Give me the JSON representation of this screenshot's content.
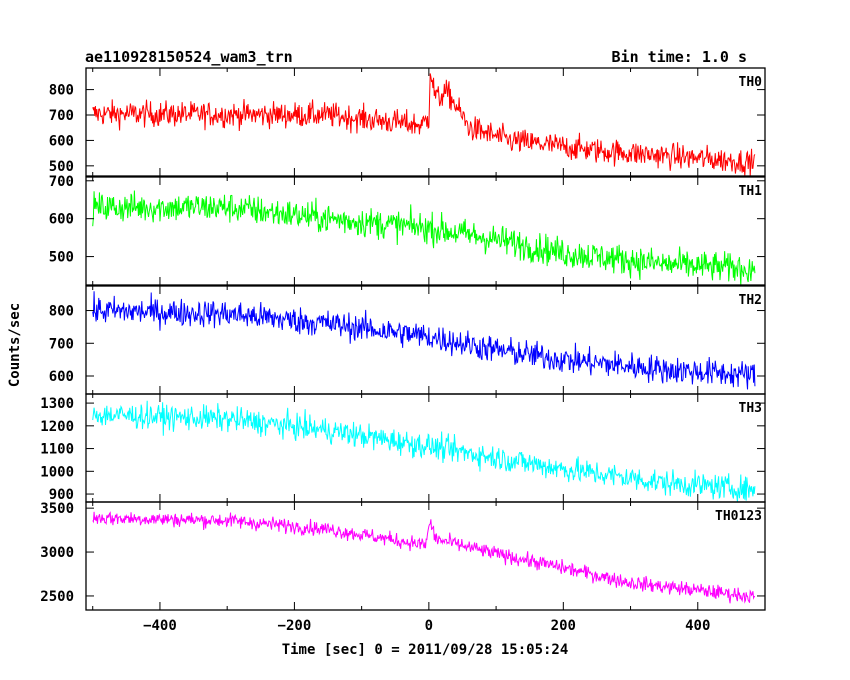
{
  "header": {
    "left": "ae110928150524_wam3_trn",
    "right": "Bin time: 1.0 s"
  },
  "chart_data": {
    "type": "line",
    "x_label": "Time [sec] 0 = 2011/09/28 15:05:24",
    "y_label": "Counts/sec",
    "x_range": [
      -510,
      500
    ],
    "x_ticks": [
      -400,
      -200,
      0,
      200,
      400
    ],
    "grid": false,
    "legend": "none",
    "panels": [
      {
        "label": "TH0",
        "color": "#ff0000",
        "y_range": [
          460,
          885
        ],
        "y_ticks": [
          500,
          600,
          700,
          800
        ],
        "trend": [
          [
            -500,
            705
          ],
          [
            -150,
            700
          ],
          [
            -10,
            660
          ],
          [
            0,
            690
          ],
          [
            2,
            885
          ],
          [
            8,
            790
          ],
          [
            15,
            760
          ],
          [
            22,
            790
          ],
          [
            30,
            780
          ],
          [
            60,
            650
          ],
          [
            120,
            600
          ],
          [
            250,
            560
          ],
          [
            500,
            510
          ]
        ],
        "noise": 45
      },
      {
        "label": "TH1",
        "color": "#00ff00",
        "y_range": [
          425,
          710
        ],
        "y_ticks": [
          500,
          600,
          700
        ],
        "trend": [
          [
            -500,
            630
          ],
          [
            -300,
            630
          ],
          [
            -150,
            600
          ],
          [
            0,
            575
          ],
          [
            100,
            545
          ],
          [
            200,
            510
          ],
          [
            350,
            480
          ],
          [
            500,
            465
          ]
        ],
        "noise": 36
      },
      {
        "label": "TH2",
        "color": "#0000ff",
        "y_range": [
          545,
          875
        ],
        "y_ticks": [
          600,
          700,
          800
        ],
        "trend": [
          [
            -500,
            800
          ],
          [
            -300,
            790
          ],
          [
            -150,
            760
          ],
          [
            0,
            720
          ],
          [
            100,
            680
          ],
          [
            200,
            650
          ],
          [
            350,
            620
          ],
          [
            500,
            600
          ]
        ],
        "noise": 38
      },
      {
        "label": "TH3",
        "color": "#00ffff",
        "y_range": [
          865,
          1340
        ],
        "y_ticks": [
          900,
          1000,
          1100,
          1200,
          1300
        ],
        "trend": [
          [
            -500,
            1250
          ],
          [
            -300,
            1230
          ],
          [
            -150,
            1180
          ],
          [
            0,
            1110
          ],
          [
            100,
            1060
          ],
          [
            200,
            1010
          ],
          [
            350,
            950
          ],
          [
            500,
            915
          ]
        ],
        "noise": 50
      },
      {
        "label": "TH0123",
        "color": "#ff00ff",
        "y_range": [
          2340,
          3570
        ],
        "y_ticks": [
          2500,
          3000,
          3500
        ],
        "trend": [
          [
            -500,
            3390
          ],
          [
            -300,
            3360
          ],
          [
            -150,
            3260
          ],
          [
            -5,
            3080
          ],
          [
            2,
            3350
          ],
          [
            10,
            3150
          ],
          [
            25,
            3120
          ],
          [
            100,
            2980
          ],
          [
            200,
            2820
          ],
          [
            300,
            2650
          ],
          [
            500,
            2480
          ]
        ],
        "noise": 75
      }
    ]
  }
}
